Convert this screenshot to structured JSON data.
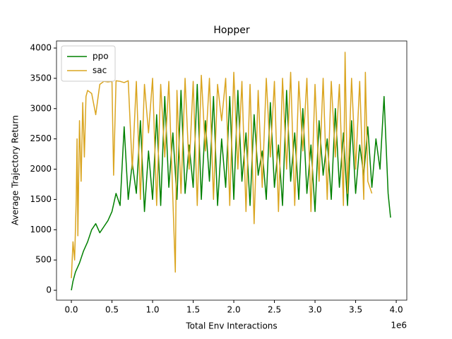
{
  "chart_data": {
    "type": "line",
    "title": "Hopper",
    "xlabel": "Total Env Interactions",
    "ylabel": "Average Trajectory Return",
    "x_offset_label": "1e6",
    "xlim": [
      -183000,
      4130000
    ],
    "ylim": [
      -163,
      4117
    ],
    "xticks": [
      {
        "value": 0,
        "label": "0.0"
      },
      {
        "value": 500000,
        "label": "0.5"
      },
      {
        "value": 1000000,
        "label": "1.0"
      },
      {
        "value": 1500000,
        "label": "1.5"
      },
      {
        "value": 2000000,
        "label": "2.0"
      },
      {
        "value": 2500000,
        "label": "2.5"
      },
      {
        "value": 3000000,
        "label": "3.0"
      },
      {
        "value": 3500000,
        "label": "3.5"
      },
      {
        "value": 4000000,
        "label": "4.0"
      }
    ],
    "yticks": [
      0,
      500,
      1000,
      1500,
      2000,
      2500,
      3000,
      3500,
      4000
    ],
    "legend": "upper left",
    "series": [
      {
        "name": "ppo",
        "color": "#008000",
        "x": [
          0,
          20000,
          50000,
          100000,
          150000,
          200000,
          250000,
          300000,
          350000,
          400000,
          450000,
          500000,
          550000,
          600000,
          650000,
          700000,
          750000,
          800000,
          850000,
          900000,
          950000,
          1000000,
          1050000,
          1100000,
          1150000,
          1200000,
          1250000,
          1300000,
          1350000,
          1400000,
          1450000,
          1500000,
          1550000,
          1600000,
          1650000,
          1700000,
          1750000,
          1800000,
          1850000,
          1900000,
          1950000,
          2000000,
          2050000,
          2100000,
          2150000,
          2200000,
          2250000,
          2300000,
          2350000,
          2400000,
          2450000,
          2500000,
          2550000,
          2600000,
          2650000,
          2700000,
          2750000,
          2800000,
          2850000,
          2900000,
          2950000,
          3000000,
          3050000,
          3100000,
          3150000,
          3200000,
          3250000,
          3300000,
          3350000,
          3400000,
          3450000,
          3500000,
          3550000,
          3600000,
          3650000,
          3700000,
          3750000,
          3800000,
          3850000,
          3900000,
          3930000
        ],
        "values": [
          0,
          150,
          300,
          450,
          650,
          800,
          1000,
          1100,
          950,
          1050,
          1150,
          1300,
          1600,
          1400,
          2700,
          1500,
          2100,
          1600,
          2800,
          1300,
          2300,
          1500,
          2900,
          1400,
          3200,
          1700,
          2600,
          1500,
          3300,
          1600,
          2400,
          1700,
          3400,
          1500,
          2800,
          1800,
          3200,
          1400,
          2500,
          1700,
          3200,
          1500,
          3300,
          1800,
          2600,
          1400,
          2900,
          1900,
          2300,
          1500,
          3100,
          1700,
          2400,
          1400,
          3300,
          1800,
          2600,
          1500,
          3000,
          1600,
          2400,
          1300,
          2800,
          1900,
          2500,
          1500,
          3000,
          1700,
          2600,
          1400,
          2800,
          1600,
          2400,
          1900,
          2700,
          1700,
          2500,
          2000,
          3200,
          1600,
          1200
        ]
      },
      {
        "name": "sac",
        "color": "#daa520",
        "x": [
          0,
          20000,
          40000,
          60000,
          70000,
          80000,
          100000,
          120000,
          140000,
          160000,
          180000,
          200000,
          250000,
          300000,
          350000,
          400000,
          450000,
          500000,
          520000,
          550000,
          600000,
          650000,
          700000,
          750000,
          800000,
          850000,
          900000,
          950000,
          1000000,
          1050000,
          1100000,
          1150000,
          1200000,
          1250000,
          1280000,
          1300000,
          1350000,
          1400000,
          1450000,
          1500000,
          1550000,
          1600000,
          1650000,
          1700000,
          1750000,
          1800000,
          1850000,
          1900000,
          1950000,
          2000000,
          2050000,
          2100000,
          2150000,
          2200000,
          2250000,
          2300000,
          2350000,
          2400000,
          2450000,
          2500000,
          2550000,
          2600000,
          2650000,
          2700000,
          2750000,
          2800000,
          2850000,
          2900000,
          2950000,
          3000000,
          3050000,
          3100000,
          3150000,
          3200000,
          3250000,
          3300000,
          3350000,
          3370000,
          3400000,
          3450000,
          3500000,
          3550000,
          3600000,
          3620000,
          3650000,
          3700000
        ],
        "values": [
          200,
          800,
          500,
          1500,
          2500,
          900,
          2800,
          1800,
          3100,
          2200,
          3200,
          3300,
          3250,
          2900,
          3400,
          3450,
          3440,
          3450,
          1900,
          3460,
          3450,
          3430,
          3460,
          2000,
          3450,
          1500,
          3400,
          2600,
          3500,
          1400,
          3400,
          2200,
          3450,
          1500,
          300,
          3300,
          1600,
          3500,
          2000,
          3450,
          1400,
          3550,
          2300,
          3500,
          1500,
          3400,
          2800,
          3500,
          1400,
          3600,
          2000,
          3450,
          1300,
          3400,
          1100,
          3300,
          1700,
          3500,
          2200,
          3450,
          1300,
          3500,
          2000,
          3600,
          1400,
          3450,
          2300,
          3500,
          1300,
          3400,
          1800,
          3500,
          1500,
          3450,
          2200,
          3400,
          1400,
          3930,
          1600,
          3500,
          2000,
          3450,
          1500,
          3600,
          1800,
          1600
        ]
      }
    ]
  }
}
